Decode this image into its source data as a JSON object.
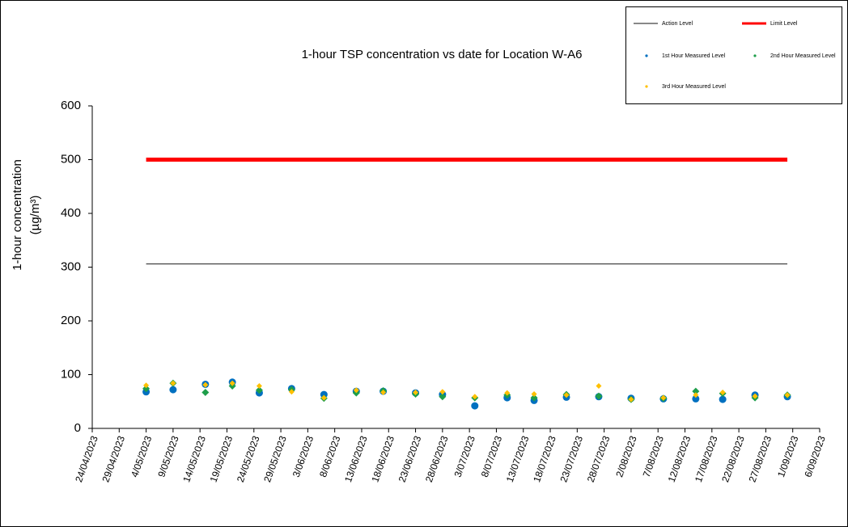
{
  "chart_data": {
    "type": "scatter",
    "title": "1-hour TSP concentration vs date for Location  W-A6",
    "ylabel": [
      "1-hour concentration",
      "(µg/m³)"
    ],
    "x": [
      "2023-05-04",
      "2023-05-09",
      "2023-05-15",
      "2023-05-20",
      "2023-05-25",
      "2023-05-31",
      "2023-06-06",
      "2023-06-12",
      "2023-06-17",
      "2023-06-23",
      "2023-06-28",
      "2023-07-04",
      "2023-07-10",
      "2023-07-15",
      "2023-07-21",
      "2023-07-27",
      "2023-08-02",
      "2023-08-08",
      "2023-08-14",
      "2023-08-19",
      "2023-08-25",
      "2023-08-31"
    ],
    "series": [
      {
        "name": "Action Level",
        "color": "#404040",
        "style": "line",
        "width": 1.2,
        "values": [
          306,
          306,
          306,
          306,
          306,
          306,
          306,
          306,
          306,
          306,
          306,
          306,
          306,
          306,
          306,
          306,
          306,
          306,
          306,
          306,
          306,
          306
        ]
      },
      {
        "name": "Limit Level",
        "color": "#ff0000",
        "style": "line",
        "width": 5,
        "values": [
          500,
          500,
          500,
          500,
          500,
          500,
          500,
          500,
          500,
          500,
          500,
          500,
          500,
          500,
          500,
          500,
          500,
          500,
          500,
          500,
          500,
          500
        ]
      },
      {
        "name": "1st Hour Measured Level",
        "color": "#0070c0",
        "style": "circle",
        "values": [
          68,
          72,
          82,
          86,
          66,
          74,
          63,
          69,
          69,
          66,
          63,
          42,
          57,
          52,
          58,
          59,
          56,
          55,
          55,
          54,
          62,
          59
        ]
      },
      {
        "name": "2nd Hour Measured Level",
        "color": "#1e9e4a",
        "style": "diamond",
        "values": [
          74,
          84,
          67,
          79,
          71,
          72,
          56,
          66,
          70,
          64,
          59,
          57,
          62,
          57,
          63,
          60,
          54,
          56,
          69,
          65,
          57,
          62
        ]
      },
      {
        "name": "3rd Hour Measured Level",
        "color": "#ffc000",
        "style": "small-diamond",
        "values": [
          80,
          84,
          81,
          84,
          79,
          68,
          57,
          71,
          67,
          67,
          68,
          59,
          66,
          64,
          62,
          79,
          54,
          57,
          62,
          67,
          60,
          62
        ]
      }
    ],
    "xlim": [
      "2023-04-24",
      "2023-09-06"
    ],
    "xticks": [
      {
        "value": "2023-04-24",
        "label": "24/04/2023"
      },
      {
        "value": "2023-04-29",
        "label": "29/04/2023"
      },
      {
        "value": "2023-05-04",
        "label": "4/05/2023"
      },
      {
        "value": "2023-05-09",
        "label": "9/05/2023"
      },
      {
        "value": "2023-05-14",
        "label": "14/05/2023"
      },
      {
        "value": "2023-05-19",
        "label": "19/05/2023"
      },
      {
        "value": "2023-05-24",
        "label": "24/05/2023"
      },
      {
        "value": "2023-05-29",
        "label": "29/05/2023"
      },
      {
        "value": "2023-06-03",
        "label": "3/06/2023"
      },
      {
        "value": "2023-06-08",
        "label": "8/06/2023"
      },
      {
        "value": "2023-06-13",
        "label": "13/06/2023"
      },
      {
        "value": "2023-06-18",
        "label": "18/06/2023"
      },
      {
        "value": "2023-06-23",
        "label": "23/06/2023"
      },
      {
        "value": "2023-06-28",
        "label": "28/06/2023"
      },
      {
        "value": "2023-07-03",
        "label": "3/07/2023"
      },
      {
        "value": "2023-07-08",
        "label": "8/07/2023"
      },
      {
        "value": "2023-07-13",
        "label": "13/07/2023"
      },
      {
        "value": "2023-07-18",
        "label": "18/07/2023"
      },
      {
        "value": "2023-07-23",
        "label": "23/07/2023"
      },
      {
        "value": "2023-07-28",
        "label": "28/07/2023"
      },
      {
        "value": "2023-08-02",
        "label": "2/08/2023"
      },
      {
        "value": "2023-08-07",
        "label": "7/08/2023"
      },
      {
        "value": "2023-08-12",
        "label": "12/08/2023"
      },
      {
        "value": "2023-08-17",
        "label": "17/08/2023"
      },
      {
        "value": "2023-08-22",
        "label": "22/08/2023"
      },
      {
        "value": "2023-08-27",
        "label": "27/08/2023"
      },
      {
        "value": "2023-09-01",
        "label": "1/09/2023"
      },
      {
        "value": "2023-09-06",
        "label": "6/09/2023"
      }
    ],
    "ylim": [
      0,
      600
    ],
    "yticks": [
      0,
      100,
      200,
      300,
      400,
      500,
      600
    ],
    "grid": false,
    "legend": "top-right"
  }
}
